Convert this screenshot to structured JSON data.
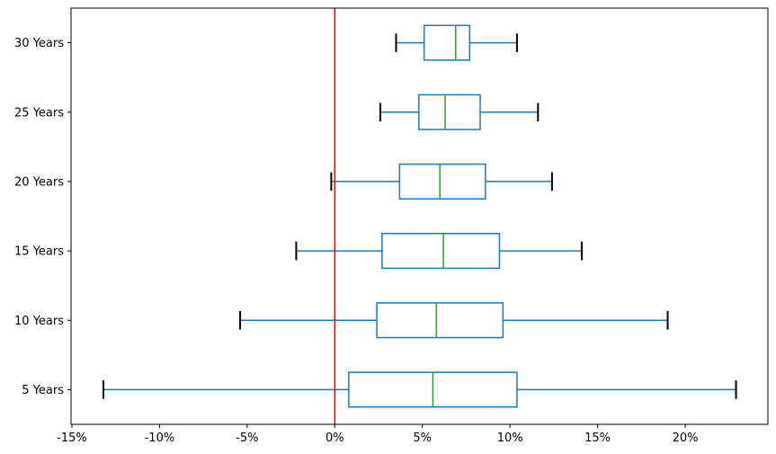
{
  "figure": {
    "background": "#ffffff"
  },
  "chart_data": {
    "type": "boxplot",
    "orientation": "horizontal",
    "title": "",
    "xlabel": "",
    "ylabel": "",
    "grid": false,
    "legend": null,
    "xlim": [
      -15.05,
      24.72
    ],
    "x_ticks": [
      {
        "value": -15,
        "label": "-15%"
      },
      {
        "value": -10,
        "label": "-10%"
      },
      {
        "value": -5,
        "label": "-5%"
      },
      {
        "value": 0,
        "label": "0%"
      },
      {
        "value": 5,
        "label": "5%"
      },
      {
        "value": 10,
        "label": "10%"
      },
      {
        "value": 15,
        "label": "15%"
      },
      {
        "value": 20,
        "label": "20%"
      }
    ],
    "rows": [
      {
        "label": "30 Years",
        "whisker_low": 3.5,
        "q1": 5.1,
        "median": 6.9,
        "q3": 7.7,
        "whisker_high": 10.4
      },
      {
        "label": "25 Years",
        "whisker_low": 2.6,
        "q1": 4.8,
        "median": 6.3,
        "q3": 8.3,
        "whisker_high": 11.6
      },
      {
        "label": "20 Years",
        "whisker_low": -0.2,
        "q1": 3.7,
        "median": 6.0,
        "q3": 8.6,
        "whisker_high": 12.4
      },
      {
        "label": "15 Years",
        "whisker_low": -2.2,
        "q1": 2.7,
        "median": 6.2,
        "q3": 9.4,
        "whisker_high": 14.1
      },
      {
        "label": "10 Years",
        "whisker_low": -5.4,
        "q1": 2.4,
        "median": 5.8,
        "q3": 9.6,
        "whisker_high": 19.0
      },
      {
        "label": "5 Years",
        "whisker_low": -13.2,
        "q1": 0.8,
        "median": 5.6,
        "q3": 10.4,
        "whisker_high": 22.9
      }
    ],
    "reference_line": {
      "x": 0,
      "color": "#ff0000"
    },
    "colors": {
      "box": "#1f77b4",
      "whisker": "#1f77b4",
      "cap": "#000000",
      "median": "#2ca02c",
      "spine": "#000000",
      "tick_label": "#000000"
    }
  }
}
